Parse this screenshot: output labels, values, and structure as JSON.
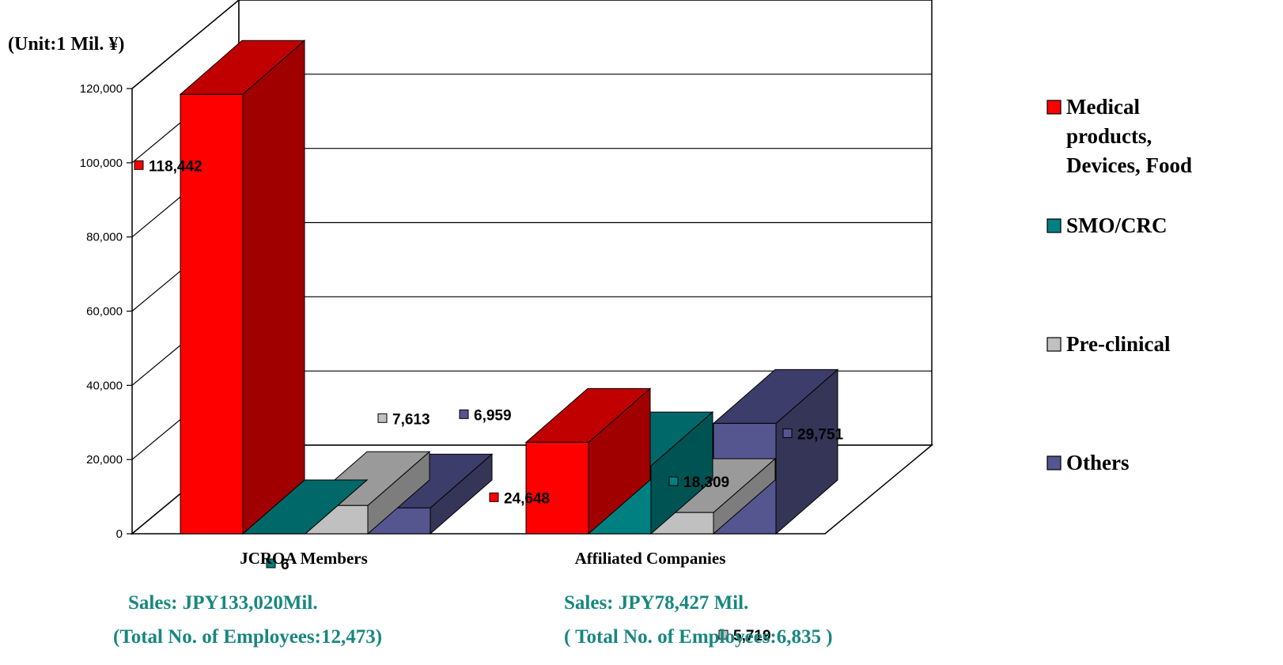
{
  "unit_label": "(Unit:1 Mil. ¥)",
  "colors": {
    "Medical products, Devices, Food": {
      "front": "#ff0000",
      "top": "#c00000",
      "side": "#a00000"
    },
    "SMO/CRC": {
      "front": "#008080",
      "top": "#006868",
      "side": "#005353"
    },
    "Pre-clinical": {
      "front": "#c0c0c0",
      "top": "#9a9a9a",
      "side": "#7d7d7d"
    },
    "Others": {
      "front": "#555590",
      "top": "#3d3d6b",
      "side": "#353557"
    }
  },
  "chart_data": {
    "type": "bar",
    "three_d": true,
    "categories": [
      "JCROA Members",
      "Affiliated Companies"
    ],
    "series": [
      {
        "name": "Medical products, Devices, Food",
        "values": [
          118442,
          24648
        ],
        "labels": [
          "118,442",
          "24,648"
        ]
      },
      {
        "name": "SMO/CRC",
        "values": [
          6,
          18309
        ],
        "labels": [
          "6",
          "18,309"
        ]
      },
      {
        "name": "Pre-clinical",
        "values": [
          7613,
          5719
        ],
        "labels": [
          "7,613",
          "5,719"
        ]
      },
      {
        "name": "Others",
        "values": [
          6959,
          29751
        ],
        "labels": [
          "6,959",
          "29,751"
        ]
      }
    ],
    "ylim": [
      0,
      120000
    ],
    "yticks": [
      "0",
      "20,000",
      "40,000",
      "60,000",
      "80,000",
      "100,000",
      "120,000"
    ],
    "grid": true,
    "legend_position": "right"
  },
  "legend": {
    "items": [
      {
        "lines": [
          "Medical",
          "products,",
          "Devices, Food"
        ]
      },
      {
        "lines": [
          "SMO/CRC"
        ]
      },
      {
        "lines": [
          "Pre-clinical"
        ]
      },
      {
        "lines": [
          "Others"
        ]
      }
    ]
  },
  "summaries": [
    {
      "sales": "Sales: JPY133,020Mil.",
      "employees": "(Total No. of Employees:12,473)"
    },
    {
      "sales": "Sales: JPY78,427 Mil.",
      "employees": "( Total No. of Employees:6,835 )"
    }
  ]
}
